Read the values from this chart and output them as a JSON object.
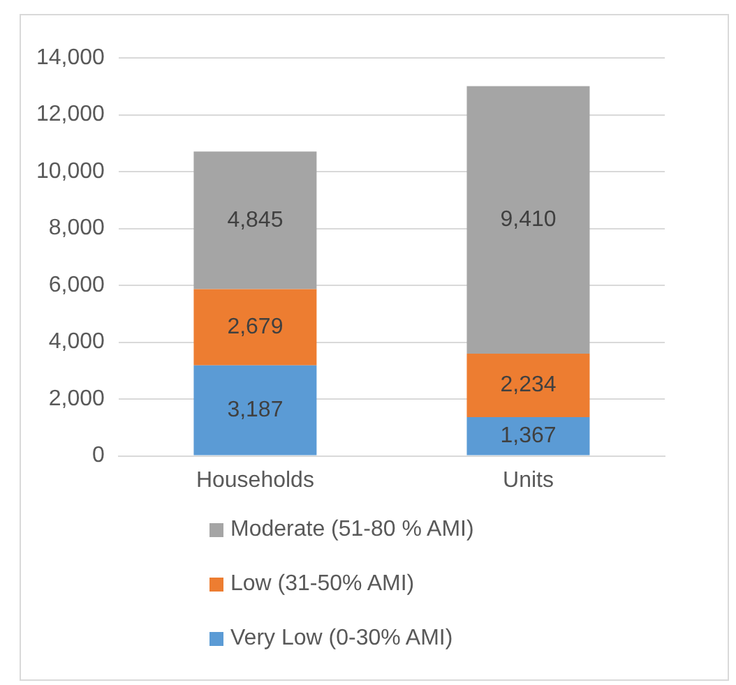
{
  "chart_data": {
    "type": "bar",
    "stacked": true,
    "categories": [
      "Households",
      "Units"
    ],
    "series": [
      {
        "name": "Very Low (0-30% AMI)",
        "color": "#5b9bd5",
        "values": [
          3187,
          1367
        ],
        "value_labels": [
          "3,187",
          "1,367"
        ]
      },
      {
        "name": "Low (31-50% AMI)",
        "color": "#ed7d31",
        "values": [
          2679,
          2234
        ],
        "value_labels": [
          "2,679",
          "2,234"
        ]
      },
      {
        "name": "Moderate (51-80 % AMI)",
        "color": "#a5a5a5",
        "values": [
          4845,
          9410
        ],
        "value_labels": [
          "4,845",
          "9,410"
        ]
      }
    ],
    "ylim": [
      0,
      14000
    ],
    "yticks": [
      0,
      {
        "value": 2000,
        "label": "2,000"
      },
      {
        "value": 4000,
        "label": "4,000"
      },
      {
        "value": 6000,
        "label": "6,000"
      },
      {
        "value": 8000,
        "label": "8,000"
      },
      {
        "value": 10000,
        "label": "10,000"
      },
      {
        "value": 12000,
        "label": "12,000"
      },
      {
        "value": 14000,
        "label": "14,000"
      }
    ],
    "grid": "y",
    "legend": "bottom"
  }
}
